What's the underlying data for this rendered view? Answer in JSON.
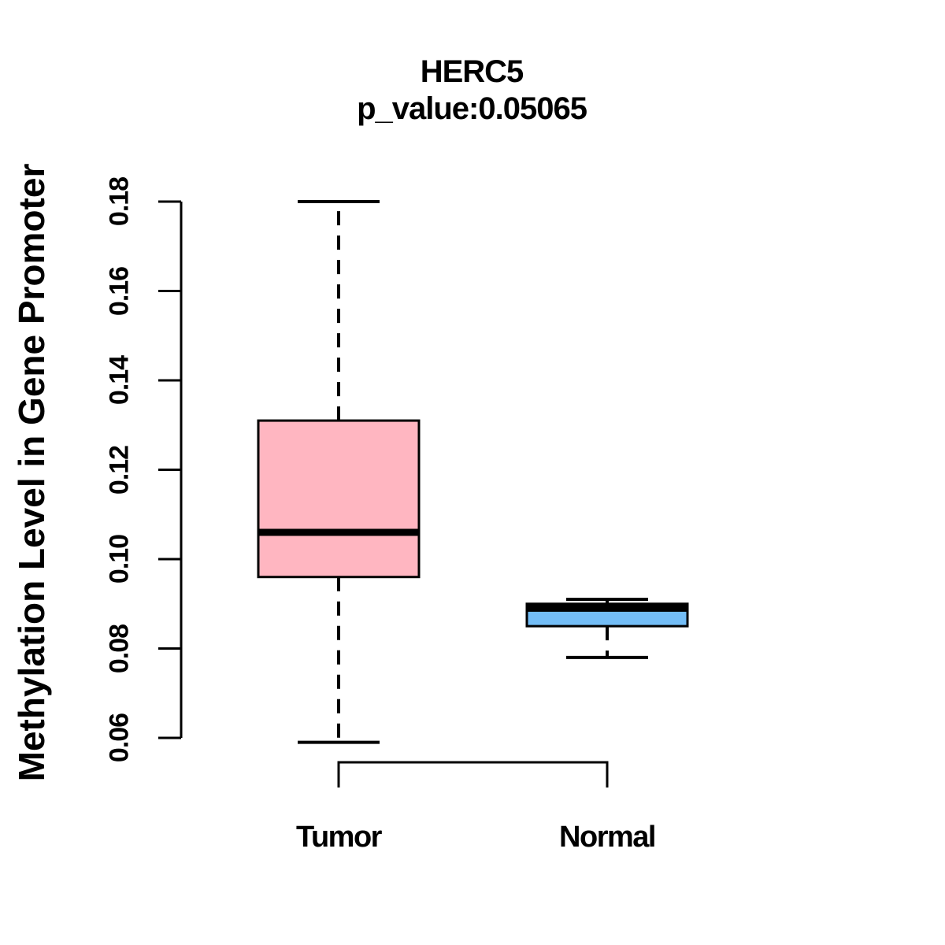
{
  "figure": {
    "background": "#FFFFFF",
    "text_color": "#000000",
    "axis_color": "#000000"
  },
  "chart_data": {
    "type": "boxplot",
    "title": "HERC5",
    "subtitle": "p_value:0.05065",
    "ylabel": "Methylation Level in Gene Promoter",
    "xlabel": "",
    "grid": false,
    "legend": "none",
    "ylim": [
      0.054,
      0.185
    ],
    "yticks": [
      0.18,
      0.16,
      0.14,
      0.12,
      0.1,
      0.08,
      0.06
    ],
    "ytick_labels": [
      "0.18",
      "0.16",
      "0.14",
      "0.12",
      "0.10",
      "0.08",
      "0.06"
    ],
    "categories": [
      "Tumor",
      "Normal"
    ],
    "series": [
      {
        "name": "Tumor",
        "box_color": "#FFB6C1",
        "border_color": "#000000",
        "whisker_low": 0.059,
        "q1": 0.096,
        "median": 0.106,
        "q3": 0.131,
        "whisker_high": 0.18
      },
      {
        "name": "Normal",
        "box_color": "#73BDF6",
        "border_color": "#000000",
        "whisker_low": 0.078,
        "q1": 0.085,
        "median": 0.089,
        "q3": 0.09,
        "whisker_high": 0.091
      }
    ]
  }
}
